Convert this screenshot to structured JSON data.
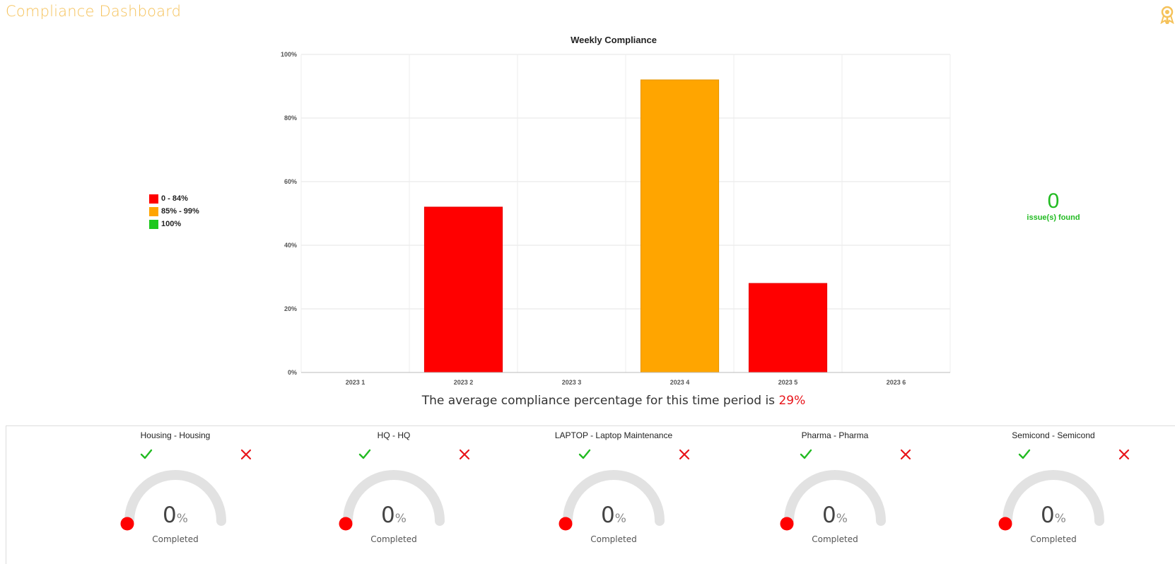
{
  "header": {
    "title": "Compliance Dashboard",
    "icon": "award-badge-icon",
    "accent_color": "#f5c25a"
  },
  "legend": {
    "items": [
      {
        "label": "0 - 84%",
        "color": "#ff0000"
      },
      {
        "label": "85% - 99%",
        "color": "#ffa500"
      },
      {
        "label": "100%",
        "color": "#1ec81e"
      }
    ]
  },
  "chart_data": {
    "type": "bar",
    "title": "Weekly Compliance",
    "categories": [
      "2023 1",
      "2023 2",
      "2023 3",
      "2023 4",
      "2023 5",
      "2023 6"
    ],
    "values": [
      0,
      52,
      0,
      92,
      28,
      0
    ],
    "bar_colors": [
      "#ff0000",
      "#ff0000",
      "#ff0000",
      "#ffa500",
      "#ff0000",
      "#ff0000"
    ],
    "ylim": [
      0,
      100
    ],
    "yticks": [
      "0%",
      "20%",
      "40%",
      "60%",
      "80%",
      "100%"
    ],
    "grid": true,
    "xlabel": "",
    "ylabel": ""
  },
  "issues": {
    "count": "0",
    "label": "issue(s) found",
    "color": "#22bb22"
  },
  "summary": {
    "prefix": "The average compliance percentage for this time period is ",
    "value": "29%"
  },
  "cards": [
    {
      "title": "Housing - Housing",
      "value": "0",
      "unit": "%",
      "label": "Completed",
      "progress": 0
    },
    {
      "title": "HQ - HQ",
      "value": "0",
      "unit": "%",
      "label": "Completed",
      "progress": 0
    },
    {
      "title": "LAPTOP - Laptop Maintenance",
      "value": "0",
      "unit": "%",
      "label": "Completed",
      "progress": 0
    },
    {
      "title": "Pharma - Pharma",
      "value": "0",
      "unit": "%",
      "label": "Completed",
      "progress": 0
    },
    {
      "title": "Semicond - Semicond",
      "value": "0",
      "unit": "%",
      "label": "Completed",
      "progress": 0
    }
  ]
}
